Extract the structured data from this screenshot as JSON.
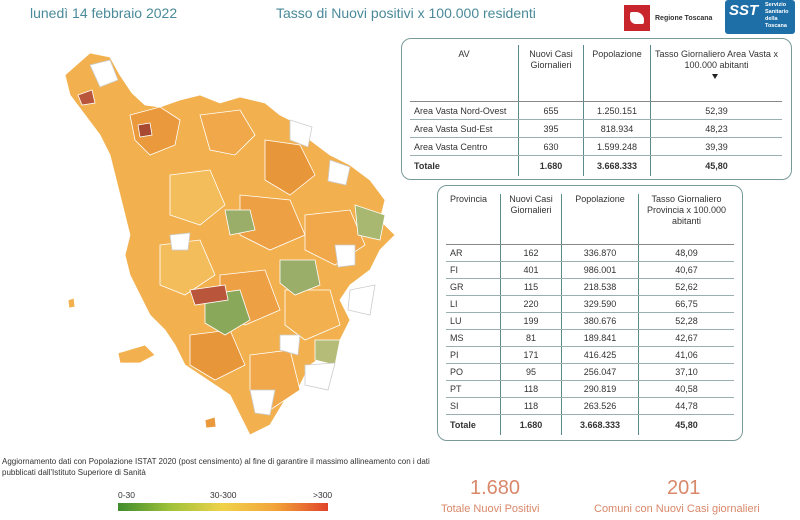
{
  "header": {
    "date": "lunedì 14 febbraio 2022",
    "title": "Tasso di Nuovi positivi x 100.000 residenti",
    "logo_rt_text": "Regione Toscana",
    "logo_sst_short": "SST",
    "logo_sst_text": "Servizio Sanitario della Toscana"
  },
  "colors": {
    "accent_title": "#4a8a9a",
    "kpi": "#d9886a",
    "map_low": "#8aa85a",
    "map_mid": "#f2b14e",
    "map_high": "#b8553a",
    "map_none": "#ffffff"
  },
  "av_table": {
    "headers": [
      "AV",
      "Nuovi Casi Giornalieri",
      "Popolazione",
      "Tasso Giornaliero Area Vasta x 100.000 abitanti"
    ],
    "rows": [
      [
        "Area Vasta Nord-Ovest",
        "655",
        "1.250.151",
        "52,39"
      ],
      [
        "Area Vasta Sud-Est",
        "395",
        "818.934",
        "48,23"
      ],
      [
        "Area Vasta Centro",
        "630",
        "1.599.248",
        "39,39"
      ]
    ],
    "total": [
      "Totale",
      "1.680",
      "3.668.333",
      "45,80"
    ]
  },
  "prov_table": {
    "headers": [
      "Provincia",
      "Nuovi Casi Giornalieri",
      "Popolazione",
      "Tasso Giornaliero Provincia x 100.000 abitanti"
    ],
    "rows": [
      [
        "AR",
        "162",
        "336.870",
        "48,09"
      ],
      [
        "FI",
        "401",
        "986.001",
        "40,67"
      ],
      [
        "GR",
        "115",
        "218.538",
        "52,62"
      ],
      [
        "LI",
        "220",
        "329.590",
        "66,75"
      ],
      [
        "LU",
        "199",
        "380.676",
        "52,28"
      ],
      [
        "MS",
        "81",
        "189.841",
        "42,67"
      ],
      [
        "PI",
        "171",
        "416.425",
        "41,06"
      ],
      [
        "PO",
        "95",
        "256.047",
        "37,10"
      ],
      [
        "PT",
        "118",
        "290.819",
        "40,58"
      ],
      [
        "SI",
        "118",
        "263.526",
        "44,78"
      ]
    ],
    "total": [
      "Totale",
      "1.680",
      "3.668.333",
      "45,80"
    ]
  },
  "note": "Aggiornamento dati con Popolazione ISTAT 2020 (post censimento) al fine di garantire il massimo allineamento con i dati pubblicati dall'Istituto Superiore di Sanità",
  "legend": {
    "low": "0-30",
    "mid": "30-300",
    "high": ">300"
  },
  "kpis": {
    "total_value": "1.680",
    "total_label": "Totale Nuovi Positivi",
    "comuni_value": "201",
    "comuni_label": "Comuni con Nuovi Casi giornalieri"
  }
}
